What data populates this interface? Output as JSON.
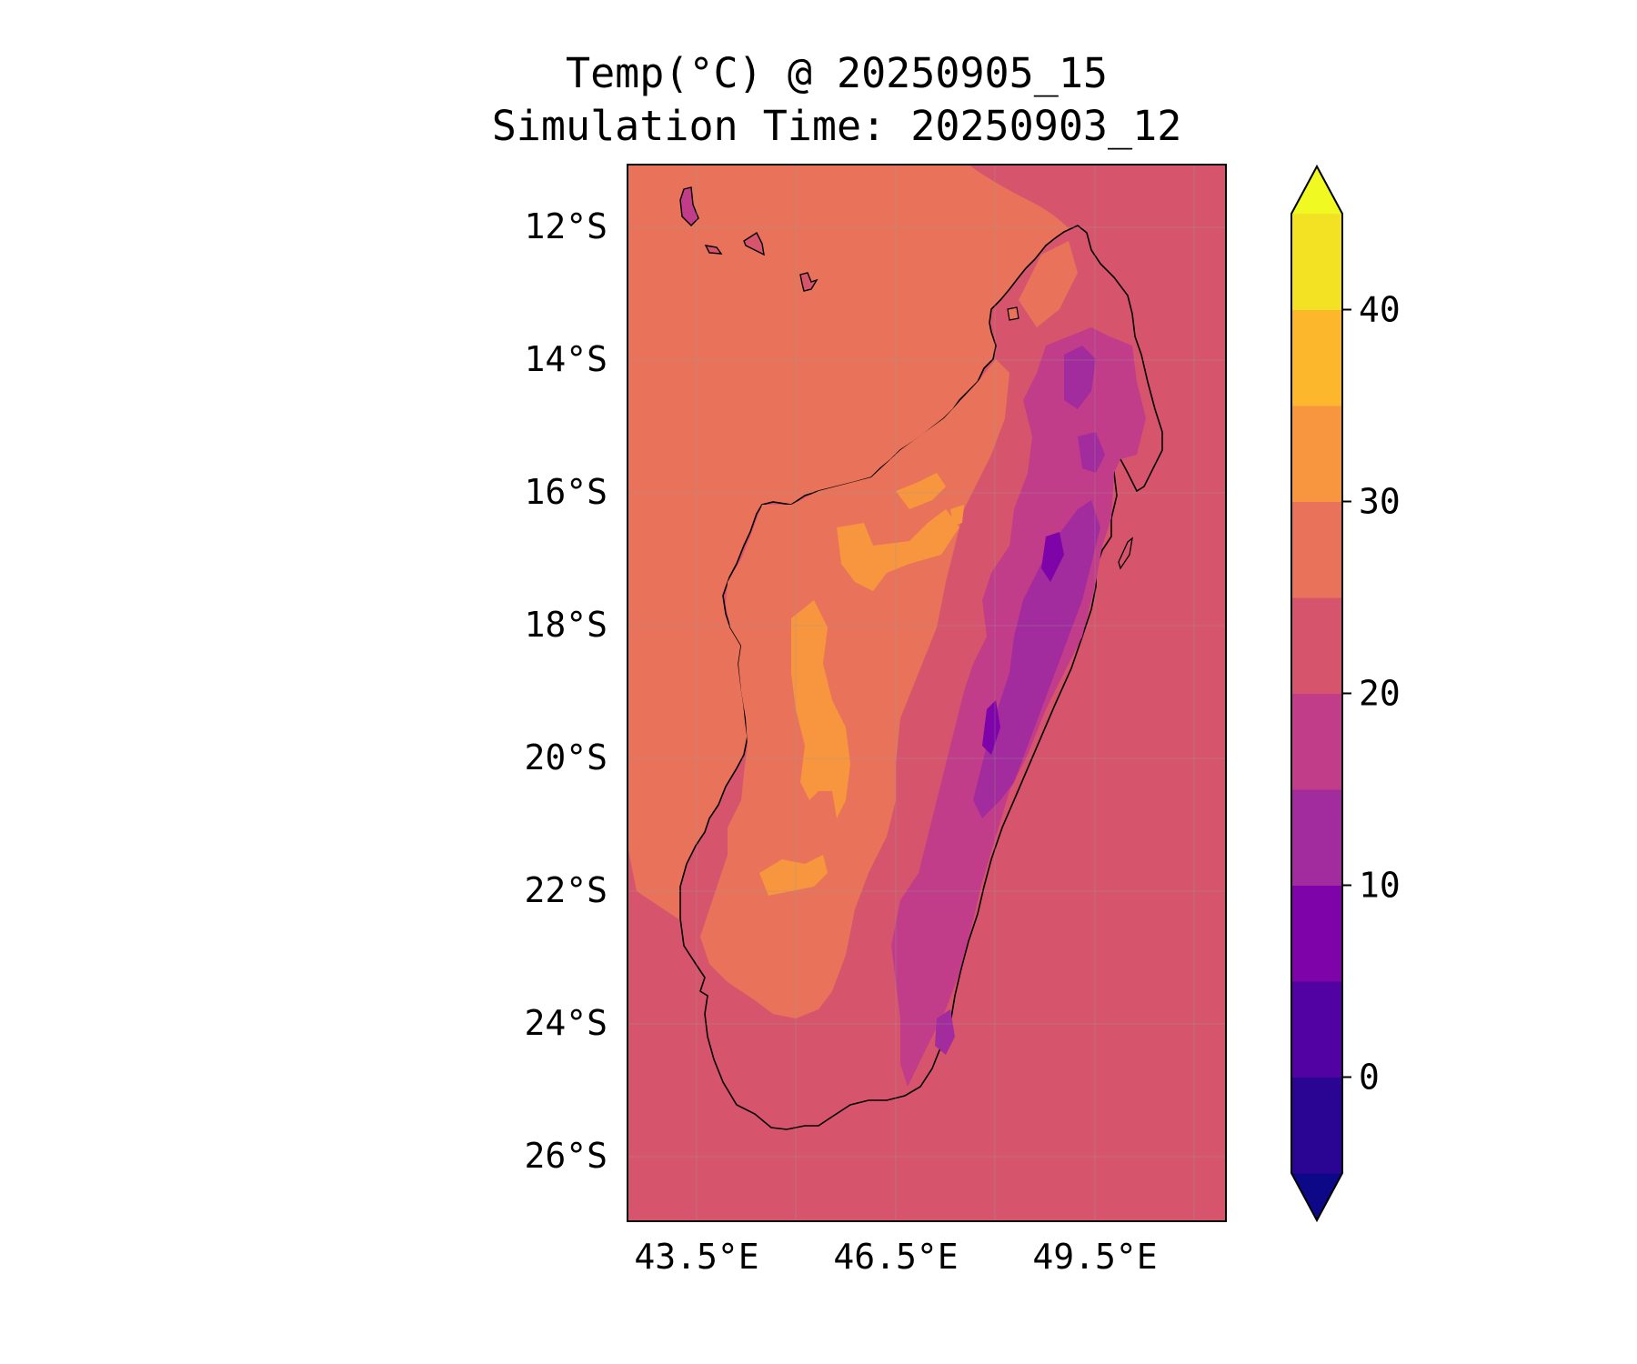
{
  "title": {
    "line1": "Temp(°C) @ 20250905_15",
    "line2": "Simulation Time: 20250903_12"
  },
  "map": {
    "region": "Madagascar",
    "lon_range": [
      42.5,
      51.5
    ],
    "lat_range": [
      -27,
      -11.1
    ],
    "lat_ticks": [
      {
        "value": -12,
        "label": "12°S"
      },
      {
        "value": -14,
        "label": "14°S"
      },
      {
        "value": -16,
        "label": "16°S"
      },
      {
        "value": -18,
        "label": "18°S"
      },
      {
        "value": -20,
        "label": "20°S"
      },
      {
        "value": -22,
        "label": "22°S"
      },
      {
        "value": -24,
        "label": "24°S"
      },
      {
        "value": -26,
        "label": "26°S"
      }
    ],
    "lon_ticks": [
      {
        "value": 43.5,
        "label": "43.5°E"
      },
      {
        "value": 46.5,
        "label": "46.5°E"
      },
      {
        "value": 49.5,
        "label": "49.5°E"
      }
    ],
    "gridlines": true,
    "coastline_color": "#000000"
  },
  "colorbar": {
    "levels": [
      -5,
      0,
      5,
      10,
      15,
      20,
      25,
      30,
      35,
      40,
      45
    ],
    "extend": "both",
    "under_color": "#0d0887",
    "over_color": "#f0f921",
    "colors": [
      "#2a0593",
      "#5202a3",
      "#7e03a8",
      "#a22b9d",
      "#c13c89",
      "#d6556d",
      "#e8735a",
      "#f7963f",
      "#fcb72d",
      "#f3e124"
    ],
    "ticks": [
      {
        "value": 0,
        "label": "0"
      },
      {
        "value": 10,
        "label": "10"
      },
      {
        "value": 20,
        "label": "20"
      },
      {
        "value": 30,
        "label": "30"
      },
      {
        "value": 40,
        "label": "40"
      }
    ]
  }
}
